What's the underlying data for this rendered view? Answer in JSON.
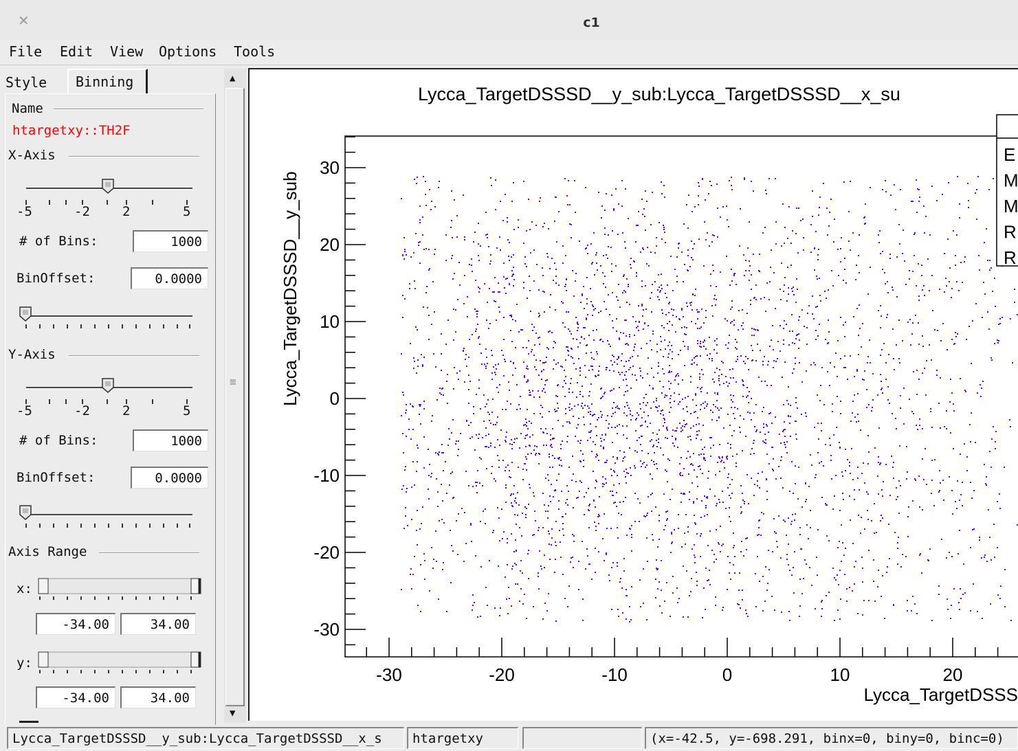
{
  "window": {
    "title": "c1"
  },
  "menu": [
    "File",
    "Edit",
    "View",
    "Options",
    "Tools"
  ],
  "editor": {
    "tabs": [
      "Style",
      "Binning"
    ],
    "name_group": "Name",
    "object_name": "htargetxy::TH2F",
    "xaxis": {
      "group": "X-Axis",
      "rebin_ticks": [
        "-5",
        "-2",
        "2",
        "5"
      ],
      "bins_label": "# of Bins:",
      "bins_value": "1000",
      "offset_label": "BinOffset:",
      "offset_value": "0.0000"
    },
    "yaxis": {
      "group": "Y-Axis",
      "rebin_ticks": [
        "-5",
        "-2",
        "2",
        "5"
      ],
      "bins_label": "# of Bins:",
      "bins_value": "1000",
      "offset_label": "BinOffset:",
      "offset_value": "0.0000"
    },
    "range": {
      "group": "Axis Range",
      "x_label": "x:",
      "x_min": "-34.00",
      "x_max": "34.00",
      "y_label": "y:",
      "y_min": "-34.00",
      "y_max": "34.00"
    }
  },
  "status": {
    "object": "Lycca_TargetDSSSD__y_sub:Lycca_TargetDSSSD__x_s",
    "name": "htargetxy",
    "empty": "",
    "info": "(x=-42.5, y=-698.291, binx=0, biny=0, binc=0)"
  },
  "chart_data": {
    "type": "scatter",
    "title": "Lycca_TargetDSSSD__y_sub:Lycca_TargetDSSSD__x_su",
    "xlabel": "Lycca_TargetDSSS",
    "ylabel": "Lycca_TargetDSSSD__y_sub",
    "xlim": [
      -34,
      34
    ],
    "ylim": [
      -34,
      34
    ],
    "xticks": [
      "-30",
      "-20",
      "-10",
      "0",
      "10",
      "20"
    ],
    "yticks": [
      "30",
      "20",
      "10",
      "0",
      "-10",
      "-20",
      "-30"
    ],
    "point_color": "#6600ff",
    "filled_region": {
      "x": [
        -29,
        29
      ],
      "y": [
        -29,
        29
      ]
    },
    "stats_box_letters": [
      "E",
      "M",
      "M",
      "R",
      "R"
    ]
  }
}
